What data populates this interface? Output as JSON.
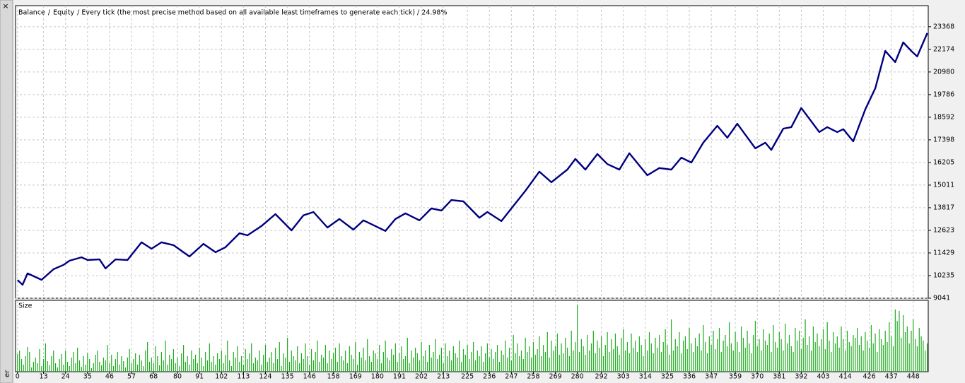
{
  "chart_data": [
    {
      "type": "line",
      "legend_separator": "/",
      "subtitle": "/ Every tick (the most precise method based on all available least timeframes to generate each tick) / 24.98%",
      "close_label": "×",
      "sidebar_label": "er",
      "x": [
        0,
        2.5,
        5,
        12,
        18,
        23,
        26,
        32,
        35,
        41,
        44,
        49,
        55,
        62,
        67,
        72,
        78,
        86,
        93,
        99,
        104,
        111,
        115,
        122,
        129,
        137,
        143,
        148,
        155,
        161,
        168,
        173,
        184,
        189,
        194,
        201,
        207,
        212,
        217,
        223,
        231,
        235,
        242,
        247,
        254,
        261,
        267,
        275,
        279,
        284,
        290,
        295,
        301,
        306,
        315,
        321,
        327,
        332,
        337,
        343,
        350,
        355,
        360,
        369,
        374,
        377,
        383,
        387,
        392,
        401,
        405,
        410,
        413,
        418,
        424,
        429,
        434,
        439,
        443,
        447,
        450,
        455
      ],
      "series": [
        {
          "name": "Balance",
          "color": "#000080",
          "values": [
            10000,
            9750,
            10350,
            10010,
            10570,
            10800,
            11020,
            11200,
            11060,
            11090,
            10610,
            11090,
            11060,
            11990,
            11650,
            11990,
            11840,
            11240,
            11910,
            11470,
            11730,
            12470,
            12360,
            12850,
            13480,
            12620,
            13410,
            13590,
            12770,
            13220,
            12660,
            13150,
            12590,
            13220,
            13520,
            13150,
            13780,
            13670,
            14220,
            14150,
            13290,
            13590,
            13110,
            13780,
            14710,
            15720,
            15160,
            15830,
            16390,
            15830,
            16650,
            16120,
            15830,
            16690,
            15530,
            15910,
            15830,
            16460,
            16200,
            17250,
            18140,
            17510,
            18250,
            16950,
            17250,
            16870,
            17990,
            18070,
            19080,
            17810,
            18070,
            17810,
            17960,
            17320,
            19000,
            20120,
            22090,
            21500,
            22540,
            22090,
            21800,
            23030
          ]
        },
        {
          "name": "Equity",
          "color": "#33cc33",
          "values": [
            10000,
            9750,
            10350,
            10010,
            10570,
            10800,
            11020,
            11200,
            11060,
            11090,
            10610,
            11090,
            11060,
            11990,
            11650,
            11990,
            11840,
            11240,
            11910,
            11470,
            11730,
            12470,
            12360,
            12850,
            13480,
            12620,
            13410,
            13590,
            12770,
            13220,
            12660,
            13150,
            12590,
            13220,
            13520,
            13150,
            13780,
            13670,
            14220,
            14150,
            13290,
            13590,
            13110,
            13780,
            14710,
            15720,
            15160,
            15830,
            16390,
            15830,
            16650,
            16120,
            15830,
            16690,
            15530,
            15910,
            15830,
            16460,
            16200,
            17250,
            18140,
            17510,
            18250,
            16950,
            17250,
            16870,
            17990,
            18070,
            19080,
            17810,
            18070,
            17810,
            17960,
            17320,
            19000,
            20120,
            22090,
            21500,
            22540,
            22090,
            21800,
            23030
          ]
        }
      ],
      "xlim": [
        -1,
        455.5
      ],
      "ylim": [
        9041,
        24480
      ],
      "yticks": [
        9041,
        10235,
        11429,
        12623,
        13817,
        15011,
        16205,
        17398,
        18592,
        19786,
        20980,
        22174,
        23368
      ],
      "grid": true
    },
    {
      "type": "bar",
      "title": "Size",
      "color": "#22aa22",
      "values": [
        25,
        30,
        18,
        10,
        22,
        35,
        28,
        6,
        14,
        20,
        12,
        32,
        8,
        18,
        40,
        15,
        9,
        22,
        30,
        12,
        6,
        18,
        25,
        10,
        30,
        14,
        8,
        20,
        28,
        12,
        34,
        16,
        7,
        22,
        10,
        26,
        18,
        5,
        12,
        24,
        30,
        14,
        9,
        20,
        16,
        38,
        12,
        24,
        8,
        18,
        28,
        10,
        22,
        15,
        6,
        20,
        32,
        12,
        18,
        26,
        10,
        24,
        16,
        8,
        30,
        42,
        14,
        20,
        12,
        36,
        22,
        9,
        28,
        16,
        44,
        10,
        24,
        18,
        32,
        12,
        20,
        8,
        26,
        38,
        14,
        22,
        10,
        30,
        18,
        24,
        12,
        34,
        20,
        8,
        28,
        16,
        40,
        14,
        22,
        10,
        26,
        18,
        30,
        12,
        24,
        44,
        16,
        8,
        28,
        20,
        36,
        14,
        22,
        10,
        32,
        18,
        26,
        40,
        12,
        20,
        16,
        30,
        10,
        24,
        38,
        14,
        20,
        28,
        12,
        34,
        18,
        42,
        8,
        26,
        20,
        48,
        14,
        30,
        22,
        16,
        36,
        12,
        26,
        18,
        40,
        22,
        10,
        32,
        16,
        28,
        44,
        14,
        24,
        20,
        38,
        12,
        30,
        18,
        26,
        34,
        14,
        40,
        22,
        16,
        30,
        12,
        36,
        24,
        18,
        42,
        10,
        28,
        20,
        34,
        16,
        46,
        22,
        14,
        30,
        26,
        18,
        38,
        12,
        28,
        44,
        20,
        16,
        32,
        24,
        40,
        14,
        26,
        36,
        18,
        22,
        48,
        12,
        30,
        20,
        34,
        26,
        16,
        42,
        22,
        30,
        14,
        38,
        20,
        28,
        46,
        18,
        24,
        34,
        12,
        40,
        22,
        30,
        16,
        36,
        26,
        20,
        44,
        14,
        32,
        24,
        38,
        18,
        28,
        42,
        16,
        30,
        22,
        36,
        14,
        26,
        40,
        20,
        32,
        18,
        28,
        38,
        14,
        30,
        24,
        44,
        20,
        34,
        16,
        52,
        26,
        40,
        22,
        30,
        18,
        48,
        28,
        36,
        20,
        42,
        24,
        32,
        50,
        22,
        38,
        28,
        56,
        20,
        44,
        30,
        36,
        54,
        24,
        40,
        26,
        48,
        34,
        22,
        58,
        30,
        42,
        95,
        28,
        46,
        36,
        24,
        52,
        30,
        40,
        58,
        26,
        44,
        34,
        50,
        22,
        38,
        56,
        28,
        46,
        32,
        54,
        36,
        24,
        48,
        60,
        30,
        42,
        26,
        54,
        34,
        44,
        28,
        50,
        38,
        22,
        46,
        30,
        56,
        40,
        26,
        48,
        34,
        52,
        28,
        42,
        60,
        38,
        24,
        74,
        30,
        46,
        36,
        56,
        26,
        44,
        50,
        32,
        62,
        40,
        28,
        48,
        36,
        54,
        30,
        66,
        42,
        26,
        50,
        38,
        58,
        32,
        46,
        62,
        28,
        44,
        52,
        36,
        70,
        40,
        30,
        56,
        42,
        28,
        64,
        48,
        34,
        58,
        40,
        26,
        52,
        72,
        36,
        46,
        30,
        60,
        44,
        38,
        54,
        28,
        66,
        42,
        34,
        56,
        46,
        30,
        68,
        40,
        52,
        36,
        28,
        62,
        44,
        58,
        32,
        48,
        74,
        38,
        50,
        30,
        64,
        42,
        54,
        36,
        46,
        60,
        32,
        70,
        44,
        28,
        56,
        40,
        50,
        34,
        64,
        46,
        30,
        58,
        42,
        36,
        52,
        48,
        62,
        38,
        50,
        30,
        56,
        44,
        34,
        66,
        40,
        54,
        28,
        60,
        46,
        38,
        58,
        42,
        70,
        50,
        36,
        88,
        72,
        86,
        48,
        80,
        56,
        64,
        40,
        58,
        74,
        46,
        36,
        62,
        50,
        44,
        30,
        40
      ],
      "xlim": [
        -1,
        455.5
      ],
      "ylim": [
        0,
        100
      ],
      "xticks": [
        0,
        13,
        24,
        35,
        46,
        57,
        68,
        80,
        91,
        102,
        113,
        124,
        135,
        146,
        158,
        169,
        180,
        191,
        202,
        213,
        225,
        236,
        247,
        258,
        269,
        280,
        292,
        303,
        314,
        325,
        336,
        347,
        359,
        370,
        381,
        392,
        403,
        414,
        426,
        437,
        448
      ],
      "grid": true
    }
  ]
}
